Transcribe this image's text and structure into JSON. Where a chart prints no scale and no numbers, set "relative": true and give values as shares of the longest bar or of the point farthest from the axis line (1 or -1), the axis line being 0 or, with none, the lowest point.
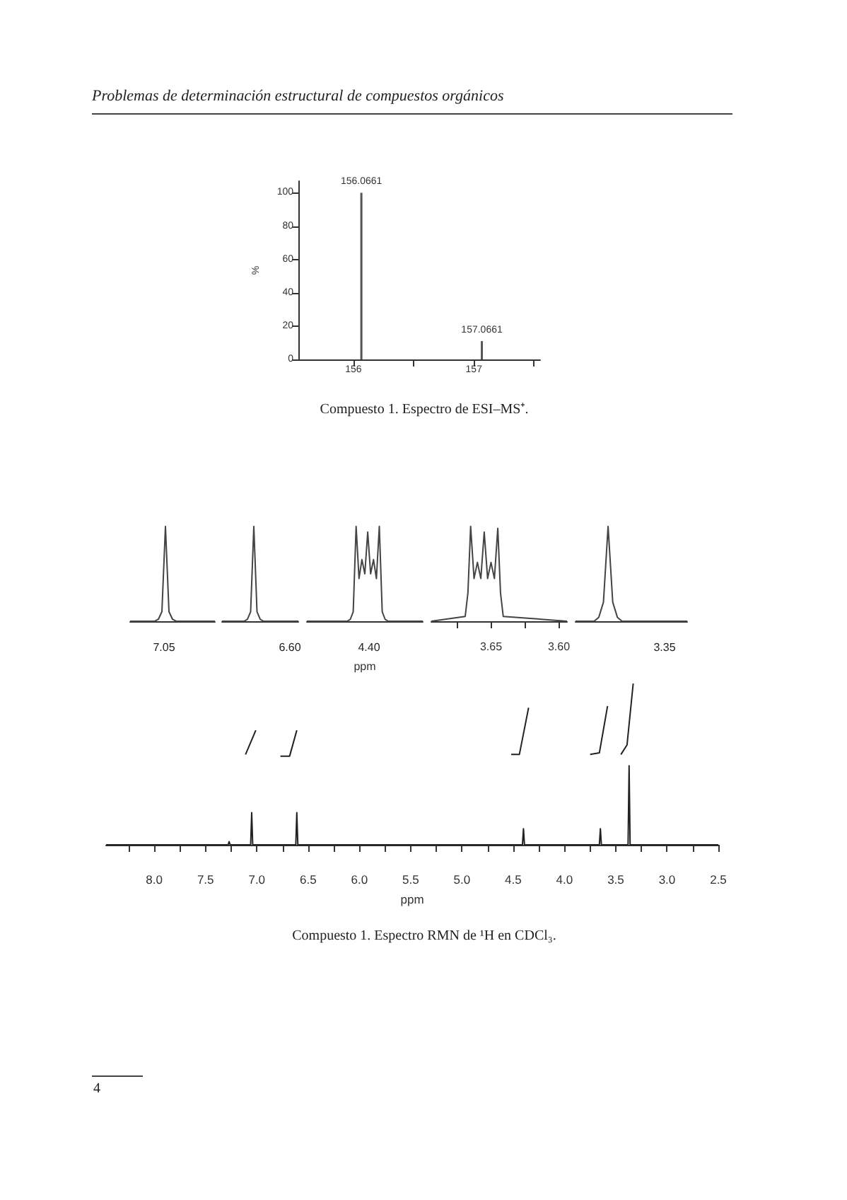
{
  "chart_data": [
    {
      "type": "bar",
      "annotations": [
        "Problemas de determinación estructural de compuestos orgánicos",
        {
          "text": "156.0661",
          "x": 156.0661,
          "y": 100
        },
        {
          "text": "157.0661",
          "x": 157.0661,
          "y": 11
        },
        "Compuesto 1. Espectro de ESI–MS⁺."
      ],
      "x": [
        156.0661,
        157.0661
      ],
      "values": [
        100,
        11
      ],
      "color": "#555555",
      "ylabel": "%",
      "xlim": [
        155.55,
        157.55
      ],
      "xticks": [
        156,
        {
          "value": 156.5,
          "label": null
        },
        157,
        {
          "value": 157.5,
          "label": null
        }
      ],
      "ylim": [
        0,
        107
      ],
      "yticks": [
        0,
        20,
        40,
        60,
        80,
        100
      ]
    },
    {
      "type": "line",
      "relative": true,
      "color": "#444444",
      "annotations": [
        "7.05"
      ],
      "categories": [
        null,
        null,
        null,
        null,
        null,
        null,
        null,
        null,
        null,
        null,
        null,
        null,
        null,
        null,
        null,
        null,
        null,
        null,
        null,
        null,
        null,
        null,
        null,
        null,
        null
      ],
      "values": [
        0,
        0,
        0,
        0,
        0,
        0,
        0,
        0,
        0.02,
        0.1,
        1,
        0.1,
        0.02,
        0,
        0,
        0,
        0,
        0,
        0,
        0,
        0,
        0,
        0,
        0,
        0
      ]
    },
    {
      "type": "line",
      "relative": true,
      "color": "#444444",
      "annotations": [
        "6.60"
      ],
      "categories": [
        null,
        null,
        null,
        null,
        null,
        null,
        null,
        null,
        null,
        null,
        null,
        null,
        null,
        null,
        null,
        null,
        null,
        null,
        null,
        null,
        null,
        null,
        null,
        null,
        null
      ],
      "values": [
        0,
        0,
        0,
        0,
        0,
        0,
        0,
        0,
        0.02,
        0.1,
        1,
        0.1,
        0.02,
        0,
        0,
        0,
        0,
        0,
        0,
        0,
        0,
        0,
        0,
        0,
        0
      ]
    },
    {
      "type": "line",
      "relative": true,
      "color": "#444444",
      "xlabel": "ppm",
      "annotations": [
        "4.40"
      ],
      "categories": [
        null,
        null,
        null,
        null,
        null,
        null,
        null,
        null,
        null,
        null,
        null,
        null,
        null,
        null,
        null,
        null,
        null,
        null,
        null,
        null,
        null,
        null,
        null,
        null,
        null,
        null,
        null,
        null,
        null,
        null,
        null,
        null,
        null,
        null,
        null,
        null,
        null,
        null,
        null,
        null,
        null
      ],
      "values": [
        0,
        0,
        0,
        0,
        0,
        0,
        0,
        0,
        0,
        0,
        0,
        0,
        0,
        0,
        0,
        0.02,
        0.1,
        1,
        0.45,
        0.65,
        0.5,
        0.94,
        0.5,
        0.65,
        0.45,
        1,
        0.1,
        0.02,
        0,
        0,
        0,
        0,
        0,
        0,
        0,
        0,
        0,
        0,
        0,
        0,
        0
      ]
    },
    {
      "type": "line",
      "relative": true,
      "color": "#444444",
      "x": [
        3.694,
        3.669,
        3.667,
        3.665,
        3.6625,
        3.66,
        3.6575,
        3.655,
        3.6525,
        3.65,
        3.6475,
        3.645,
        3.643,
        3.641,
        3.594
      ],
      "values": [
        0,
        0.05,
        0.3,
        1,
        0.45,
        0.62,
        0.45,
        0.94,
        0.45,
        0.62,
        0.45,
        0.98,
        0.3,
        0.05,
        0
      ],
      "xlim": [
        3.694,
        3.594
      ],
      "xticks": [
        {
          "value": 3.675,
          "label": null
        },
        3.65,
        {
          "value": 3.625,
          "label": null
        },
        {
          "value": 3.6,
          "label": "3.60"
        }
      ]
    },
    {
      "type": "line",
      "relative": true,
      "color": "#444444",
      "annotations": [
        "3.35"
      ],
      "categories": [
        null,
        null,
        null,
        null,
        null,
        null,
        null,
        null,
        null,
        null,
        null,
        null,
        null,
        null,
        null,
        null,
        null,
        null,
        null,
        null,
        null,
        null,
        null,
        null,
        null
      ],
      "values": [
        0,
        0,
        0,
        0,
        0,
        0.04,
        0.2,
        1,
        0.2,
        0.04,
        0,
        0,
        0,
        0,
        0,
        0,
        0,
        0,
        0,
        0,
        0,
        0,
        0,
        0,
        0
      ]
    },
    {
      "type": "line",
      "relative": true,
      "xlabel": "ppm",
      "annotations": [
        "Compuesto 1. Espectro RMN de ¹H en CDCl₃.",
        "4"
      ],
      "xlim": [
        8.47,
        2.5
      ],
      "xticks": [
        {
          "value": 8.25,
          "label": null
        },
        {
          "value": 8,
          "label": "8.0"
        },
        {
          "value": 7.75,
          "label": null
        },
        7.5,
        {
          "value": 7.25,
          "label": null
        },
        {
          "value": 7,
          "label": "7.0"
        },
        {
          "value": 6.75,
          "label": null
        },
        6.5,
        {
          "value": 6.25,
          "label": null
        },
        {
          "value": 6,
          "label": "6.0"
        },
        {
          "value": 5.75,
          "label": null
        },
        5.5,
        {
          "value": 5.25,
          "label": null
        },
        {
          "value": 5,
          "label": "5.0"
        },
        {
          "value": 4.75,
          "label": null
        },
        4.5,
        {
          "value": 4.25,
          "label": null
        },
        {
          "value": 4,
          "label": "4.0"
        },
        {
          "value": 3.75,
          "label": null
        },
        3.5,
        {
          "value": 3.25,
          "label": null
        },
        {
          "value": 3,
          "label": "3.0"
        },
        {
          "value": 2.75,
          "label": null
        },
        2.5
      ],
      "series": [
        {
          "color": "#222222",
          "x": [
            8.47,
            7.28,
            7.27,
            7.26,
            7.06,
            7.05,
            7.04,
            6.62,
            6.61,
            6.6,
            4.41,
            4.4,
            4.39,
            3.66,
            3.65,
            3.64,
            3.38,
            3.37,
            3.36,
            2.5
          ],
          "values": [
            0,
            0,
            0.02,
            0,
            0,
            0.2,
            0,
            0,
            0.2,
            0,
            0,
            0.1,
            0,
            0,
            0.1,
            0,
            0,
            0.49,
            0,
            0
          ]
        },
        {
          "color": "#222222",
          "x": [
            7.11,
            7.01,
            6.9,
            6.77,
            6.68,
            6.61,
            6.5,
            4.52,
            4.44,
            4.35,
            4.0,
            3.75,
            3.66,
            3.58,
            3.5,
            3.45,
            3.39,
            3.33
          ],
          "values": [
            0.56,
            0.71,
            null,
            0.55,
            0.55,
            0.71,
            null,
            0.56,
            0.56,
            0.85,
            null,
            0.56,
            0.57,
            0.86,
            null,
            0.56,
            0.62,
            1
          ]
        }
      ]
    }
  ]
}
